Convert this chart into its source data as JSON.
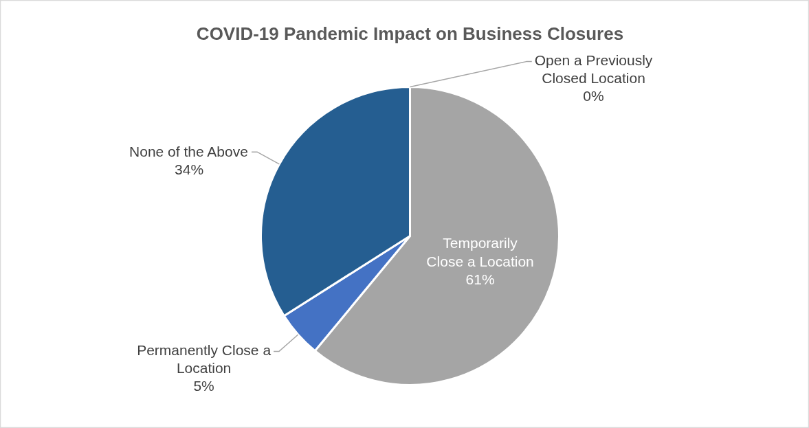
{
  "chart_data": {
    "type": "pie",
    "title": "COVID-19 Pandemic Impact on Business Closures",
    "categories": [
      "Open a Previously Closed Location",
      "Temporarily Close a Location",
      "Permanently Close a Location",
      "None of the Above"
    ],
    "values": [
      0,
      61,
      5,
      34
    ],
    "colors": [
      "#ed7d31",
      "#a5a5a5",
      "#4472c4",
      "#255e91"
    ],
    "value_labels": [
      "0%",
      "61%",
      "5%",
      "34%"
    ]
  }
}
